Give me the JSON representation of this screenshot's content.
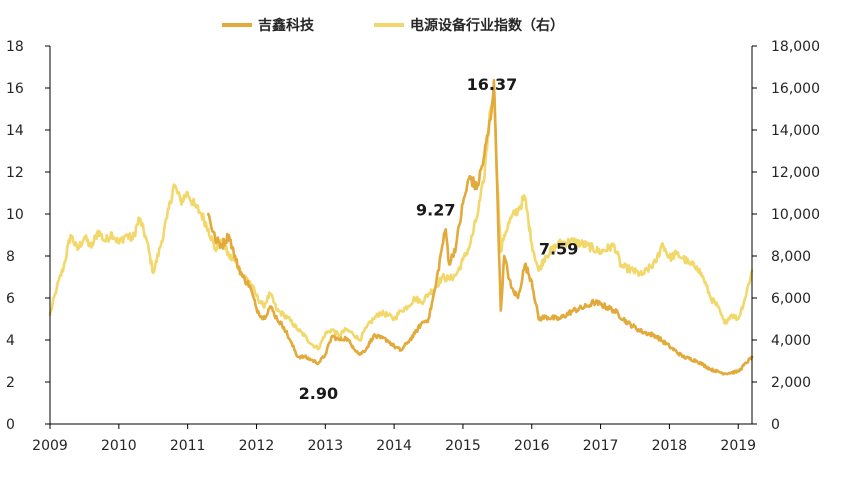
{
  "chart_data": {
    "type": "line",
    "legend_position": "top-center",
    "grid": false,
    "x_ticks": [
      "2009",
      "2010",
      "2011",
      "2012",
      "2013",
      "2014",
      "2015",
      "2016",
      "2017",
      "2018",
      "2019"
    ],
    "y_left": {
      "range": [
        0,
        18
      ],
      "ticks": [
        "0",
        "2",
        "4",
        "6",
        "8",
        "10",
        "12",
        "14",
        "16",
        "18"
      ]
    },
    "y_right": {
      "range": [
        0,
        18000
      ],
      "ticks": [
        "0",
        "2,000",
        "4,000",
        "6,000",
        "8,000",
        "10,000",
        "12,000",
        "14,000",
        "16,000",
        "18,000"
      ]
    },
    "series": [
      {
        "name": "吉鑫科技",
        "axis": "left",
        "color": "#E2A93B",
        "points": [
          [
            2011.3,
            10.0
          ],
          [
            2011.4,
            8.8
          ],
          [
            2011.5,
            8.5
          ],
          [
            2011.6,
            9.0
          ],
          [
            2011.7,
            7.8
          ],
          [
            2011.8,
            7.0
          ],
          [
            2011.9,
            6.6
          ],
          [
            2012.0,
            5.5
          ],
          [
            2012.1,
            5.0
          ],
          [
            2012.2,
            5.6
          ],
          [
            2012.3,
            5.0
          ],
          [
            2012.4,
            4.6
          ],
          [
            2012.5,
            3.9
          ],
          [
            2012.6,
            3.2
          ],
          [
            2012.7,
            3.2
          ],
          [
            2012.8,
            3.05
          ],
          [
            2012.9,
            2.9
          ],
          [
            2013.0,
            3.3
          ],
          [
            2013.1,
            4.2
          ],
          [
            2013.2,
            4.0
          ],
          [
            2013.3,
            4.1
          ],
          [
            2013.4,
            3.7
          ],
          [
            2013.5,
            3.3
          ],
          [
            2013.6,
            3.6
          ],
          [
            2013.7,
            4.2
          ],
          [
            2013.8,
            4.1
          ],
          [
            2013.9,
            4.0
          ],
          [
            2014.0,
            3.7
          ],
          [
            2014.1,
            3.5
          ],
          [
            2014.2,
            3.9
          ],
          [
            2014.3,
            4.3
          ],
          [
            2014.4,
            4.8
          ],
          [
            2014.5,
            5.0
          ],
          [
            2014.6,
            6.5
          ],
          [
            2014.7,
            8.5
          ],
          [
            2014.75,
            9.27
          ],
          [
            2014.8,
            7.6
          ],
          [
            2014.9,
            8.5
          ],
          [
            2015.0,
            10.5
          ],
          [
            2015.1,
            11.8
          ],
          [
            2015.2,
            11.2
          ],
          [
            2015.3,
            12.6
          ],
          [
            2015.4,
            14.5
          ],
          [
            2015.45,
            16.37
          ],
          [
            2015.5,
            11.0
          ],
          [
            2015.55,
            5.4
          ],
          [
            2015.6,
            8.0
          ],
          [
            2015.7,
            6.5
          ],
          [
            2015.8,
            6.0
          ],
          [
            2015.9,
            7.59
          ],
          [
            2016.0,
            6.8
          ],
          [
            2016.1,
            5.0
          ],
          [
            2016.2,
            5.1
          ],
          [
            2016.4,
            5.0
          ],
          [
            2016.6,
            5.4
          ],
          [
            2016.8,
            5.6
          ],
          [
            2016.9,
            5.8
          ],
          [
            2017.0,
            5.7
          ],
          [
            2017.2,
            5.4
          ],
          [
            2017.4,
            4.8
          ],
          [
            2017.6,
            4.4
          ],
          [
            2017.8,
            4.2
          ],
          [
            2018.0,
            3.7
          ],
          [
            2018.2,
            3.2
          ],
          [
            2018.4,
            3.0
          ],
          [
            2018.6,
            2.6
          ],
          [
            2018.8,
            2.4
          ],
          [
            2019.0,
            2.5
          ],
          [
            2019.2,
            3.2
          ]
        ]
      },
      {
        "name": "电源设备行业指数（右）",
        "axis": "right",
        "color": "#F2D86B",
        "points": [
          [
            2009.0,
            5200
          ],
          [
            2009.1,
            6500
          ],
          [
            2009.2,
            7500
          ],
          [
            2009.3,
            9000
          ],
          [
            2009.4,
            8300
          ],
          [
            2009.5,
            8900
          ],
          [
            2009.6,
            8400
          ],
          [
            2009.7,
            9200
          ],
          [
            2009.8,
            8700
          ],
          [
            2009.9,
            9100
          ],
          [
            2010.0,
            8600
          ],
          [
            2010.1,
            9000
          ],
          [
            2010.2,
            8800
          ],
          [
            2010.3,
            9800
          ],
          [
            2010.4,
            8800
          ],
          [
            2010.5,
            7200
          ],
          [
            2010.6,
            8400
          ],
          [
            2010.7,
            9800
          ],
          [
            2010.8,
            11400
          ],
          [
            2010.9,
            10600
          ],
          [
            2011.0,
            11000
          ],
          [
            2011.1,
            10400
          ],
          [
            2011.2,
            10000
          ],
          [
            2011.3,
            9300
          ],
          [
            2011.4,
            8300
          ],
          [
            2011.5,
            8700
          ],
          [
            2011.6,
            8000
          ],
          [
            2011.7,
            7700
          ],
          [
            2011.8,
            7100
          ],
          [
            2011.9,
            6800
          ],
          [
            2012.0,
            6100
          ],
          [
            2012.1,
            5600
          ],
          [
            2012.2,
            6200
          ],
          [
            2012.3,
            5400
          ],
          [
            2012.4,
            5200
          ],
          [
            2012.5,
            4900
          ],
          [
            2012.6,
            4500
          ],
          [
            2012.7,
            4200
          ],
          [
            2012.8,
            3800
          ],
          [
            2012.9,
            3600
          ],
          [
            2013.0,
            4300
          ],
          [
            2013.1,
            4500
          ],
          [
            2013.2,
            4200
          ],
          [
            2013.3,
            4500
          ],
          [
            2013.4,
            4300
          ],
          [
            2013.5,
            4000
          ],
          [
            2013.6,
            4600
          ],
          [
            2013.7,
            5000
          ],
          [
            2013.8,
            5300
          ],
          [
            2013.9,
            5200
          ],
          [
            2014.0,
            5000
          ],
          [
            2014.1,
            5400
          ],
          [
            2014.2,
            5600
          ],
          [
            2014.3,
            6000
          ],
          [
            2014.4,
            5800
          ],
          [
            2014.5,
            6200
          ],
          [
            2014.6,
            6500
          ],
          [
            2014.7,
            7000
          ],
          [
            2014.8,
            6900
          ],
          [
            2014.9,
            7100
          ],
          [
            2015.0,
            7800
          ],
          [
            2015.1,
            8500
          ],
          [
            2015.2,
            9800
          ],
          [
            2015.3,
            11500
          ],
          [
            2015.4,
            15000
          ],
          [
            2015.45,
            16200
          ],
          [
            2015.5,
            11500
          ],
          [
            2015.55,
            8200
          ],
          [
            2015.6,
            9000
          ],
          [
            2015.7,
            9800
          ],
          [
            2015.8,
            10200
          ],
          [
            2015.9,
            10800
          ],
          [
            2016.0,
            8600
          ],
          [
            2016.1,
            7300
          ],
          [
            2016.2,
            8000
          ],
          [
            2016.4,
            8600
          ],
          [
            2016.6,
            8700
          ],
          [
            2016.8,
            8500
          ],
          [
            2017.0,
            8200
          ],
          [
            2017.2,
            8500
          ],
          [
            2017.3,
            7500
          ],
          [
            2017.4,
            7400
          ],
          [
            2017.6,
            7100
          ],
          [
            2017.8,
            7700
          ],
          [
            2017.9,
            8600
          ],
          [
            2018.0,
            7900
          ],
          [
            2018.1,
            8100
          ],
          [
            2018.2,
            7900
          ],
          [
            2018.3,
            7600
          ],
          [
            2018.4,
            7500
          ],
          [
            2018.5,
            6900
          ],
          [
            2018.6,
            6000
          ],
          [
            2018.7,
            5600
          ],
          [
            2018.8,
            4800
          ],
          [
            2018.9,
            5200
          ],
          [
            2019.0,
            5000
          ],
          [
            2019.1,
            6000
          ],
          [
            2019.2,
            7300
          ]
        ]
      }
    ],
    "annotations": [
      {
        "text": "2.90",
        "x": 2012.9,
        "y": 2.9,
        "placement": "below"
      },
      {
        "text": "9.27",
        "x": 2014.75,
        "y": 9.27,
        "placement": "above"
      },
      {
        "text": "16.37",
        "x": 2015.45,
        "y": 16.37,
        "placement": "center"
      },
      {
        "text": "7.59",
        "x": 2015.9,
        "y": 7.59,
        "placement": "right"
      }
    ]
  }
}
